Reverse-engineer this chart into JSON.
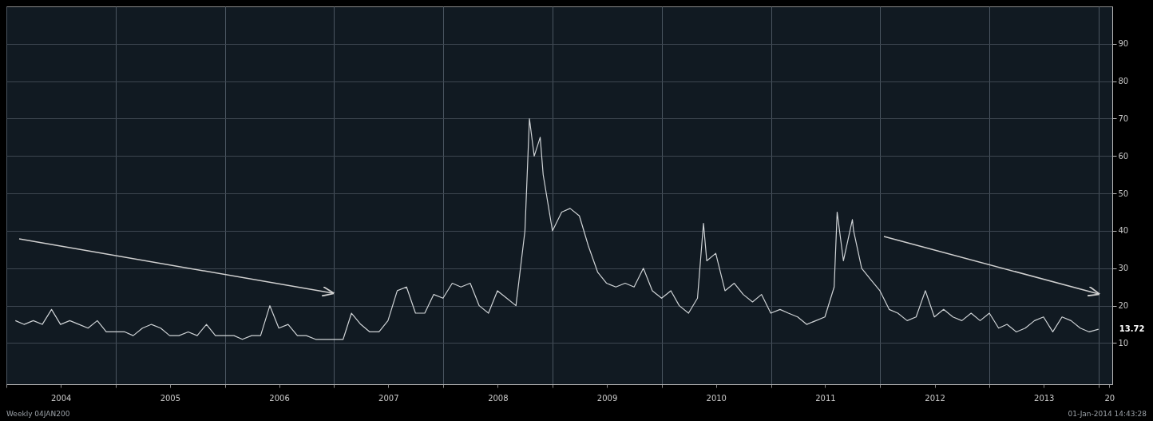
{
  "chart_data": {
    "type": "line",
    "x": [
      "2004-01-31",
      "2004-02-29",
      "2004-03-31",
      "2004-04-30",
      "2004-05-31",
      "2004-06-30",
      "2004-07-31",
      "2004-08-31",
      "2004-09-30",
      "2004-10-31",
      "2004-11-30",
      "2004-12-31",
      "2005-01-31",
      "2005-02-28",
      "2005-03-31",
      "2005-04-30",
      "2005-05-31",
      "2005-06-30",
      "2005-07-31",
      "2005-08-31",
      "2005-09-30",
      "2005-10-31",
      "2005-11-30",
      "2005-12-31",
      "2006-01-31",
      "2006-02-28",
      "2006-03-31",
      "2006-04-30",
      "2006-05-31",
      "2006-06-30",
      "2006-07-31",
      "2006-08-31",
      "2006-09-30",
      "2006-10-31",
      "2006-11-30",
      "2006-12-31",
      "2007-01-31",
      "2007-02-28",
      "2007-03-31",
      "2007-04-30",
      "2007-05-31",
      "2007-06-30",
      "2007-07-31",
      "2007-08-31",
      "2007-09-30",
      "2007-10-31",
      "2007-11-30",
      "2007-12-31",
      "2008-01-31",
      "2008-02-29",
      "2008-03-31",
      "2008-04-30",
      "2008-05-31",
      "2008-06-30",
      "2008-07-31",
      "2008-08-31",
      "2008-09-30",
      "2008-10-15",
      "2008-10-31",
      "2008-11-20",
      "2008-11-30",
      "2008-12-31",
      "2009-01-31",
      "2009-02-28",
      "2009-03-31",
      "2009-04-30",
      "2009-05-31",
      "2009-06-30",
      "2009-07-31",
      "2009-08-31",
      "2009-09-30",
      "2009-10-31",
      "2009-11-30",
      "2009-12-31",
      "2010-01-31",
      "2010-02-28",
      "2010-03-31",
      "2010-04-30",
      "2010-05-20",
      "2010-05-31",
      "2010-06-30",
      "2010-07-31",
      "2010-08-31",
      "2010-09-30",
      "2010-10-31",
      "2010-11-30",
      "2010-12-31",
      "2011-01-31",
      "2011-02-28",
      "2011-03-31",
      "2011-04-30",
      "2011-05-31",
      "2011-06-30",
      "2011-07-31",
      "2011-08-10",
      "2011-08-31",
      "2011-09-30",
      "2011-10-04",
      "2011-10-31",
      "2011-11-30",
      "2011-12-31",
      "2012-01-31",
      "2012-02-29",
      "2012-03-31",
      "2012-04-30",
      "2012-05-31",
      "2012-06-30",
      "2012-07-31",
      "2012-08-31",
      "2012-09-30",
      "2012-10-31",
      "2012-11-30",
      "2012-12-31",
      "2013-01-31",
      "2013-02-28",
      "2013-03-31",
      "2013-04-30",
      "2013-05-31",
      "2013-06-30",
      "2013-07-31",
      "2013-08-31",
      "2013-09-30",
      "2013-10-31",
      "2013-11-30",
      "2013-12-31"
    ],
    "series": [
      {
        "color": "#cfd3d6",
        "values": [
          16,
          15,
          16,
          15,
          19,
          15,
          16,
          15,
          14,
          16,
          13,
          13,
          13,
          12,
          14,
          15,
          14,
          12,
          12,
          13,
          12,
          15,
          12,
          12,
          12,
          11,
          12,
          12,
          20,
          14,
          15,
          12,
          12,
          11,
          11,
          11,
          11,
          18,
          15,
          13,
          13,
          16,
          24,
          25,
          18,
          18,
          23,
          22,
          26,
          25,
          26,
          20,
          18,
          24,
          22,
          20,
          40,
          70,
          60,
          65,
          55,
          40,
          45,
          46,
          44,
          36,
          29,
          26,
          25,
          26,
          25,
          30,
          24,
          22,
          24,
          20,
          18,
          22,
          42,
          32,
          34,
          24,
          26,
          23,
          21,
          23,
          18,
          19,
          18,
          17,
          15,
          16,
          17,
          25,
          45,
          32,
          43,
          40,
          30,
          27,
          24,
          19,
          18,
          16,
          17,
          24,
          17,
          19,
          17,
          16,
          18,
          16,
          18,
          14,
          15,
          13,
          14,
          16,
          17,
          13,
          17,
          16,
          14,
          13,
          13.72
        ]
      }
    ],
    "xlim": [
      "2004-01-01",
      "2014-02-15"
    ],
    "xticks": [
      {
        "value": "2004-01-01",
        "label": null
      },
      {
        "value": "2004-07-01",
        "label": "2004"
      },
      {
        "value": "2005-01-01",
        "label": null
      },
      {
        "value": "2005-07-01",
        "label": "2005"
      },
      {
        "value": "2006-01-01",
        "label": null
      },
      {
        "value": "2006-07-01",
        "label": "2006"
      },
      {
        "value": "2007-01-01",
        "label": null
      },
      {
        "value": "2007-07-01",
        "label": "2007"
      },
      {
        "value": "2008-01-01",
        "label": null
      },
      {
        "value": "2008-07-01",
        "label": "2008"
      },
      {
        "value": "2009-01-01",
        "label": null
      },
      {
        "value": "2009-07-01",
        "label": "2009"
      },
      {
        "value": "2010-01-01",
        "label": null
      },
      {
        "value": "2010-07-01",
        "label": "2010"
      },
      {
        "value": "2011-01-01",
        "label": null
      },
      {
        "value": "2011-07-01",
        "label": "2011"
      },
      {
        "value": "2012-01-01",
        "label": null
      },
      {
        "value": "2012-07-01",
        "label": "2012"
      },
      {
        "value": "2013-01-01",
        "label": null
      },
      {
        "value": "2013-07-01",
        "label": "2013"
      },
      {
        "value": "2014-01-01",
        "label": null
      },
      {
        "value": "2014-02-05",
        "label": "20"
      }
    ],
    "ylim": [
      -1,
      100
    ],
    "yticks": [
      10,
      20,
      30,
      40,
      50,
      60,
      70,
      80,
      90
    ],
    "grid": true,
    "marker": "none",
    "line_style": "solid",
    "annotations": [
      {
        "text": "13.72",
        "x": "2013-12-31",
        "y": 13.72
      },
      "Weekly 04JAN200",
      "01-Jan-2014 14:43:28"
    ]
  }
}
